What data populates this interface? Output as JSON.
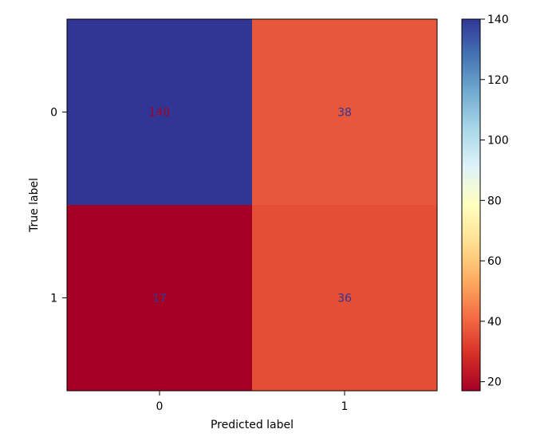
{
  "chart_data": {
    "type": "heatmap",
    "title": "",
    "xlabel": "Predicted label",
    "ylabel": "True label",
    "x_categories": [
      "0",
      "1"
    ],
    "y_categories": [
      "0",
      "1"
    ],
    "values": [
      [
        140,
        38
      ],
      [
        17,
        36
      ]
    ],
    "colormap": "RdYlBu",
    "color_range": [
      17,
      140
    ],
    "colorbar_ticks": [
      "20",
      "40",
      "60",
      "80",
      "100",
      "120",
      "140"
    ],
    "cell_colors": [
      [
        "#313695",
        "#e7573b"
      ],
      [
        "#a50026",
        "#e34e34"
      ]
    ],
    "cell_text_colors": [
      [
        "#a50026",
        "#313695"
      ],
      [
        "#313695",
        "#313695"
      ]
    ],
    "grid": false
  }
}
